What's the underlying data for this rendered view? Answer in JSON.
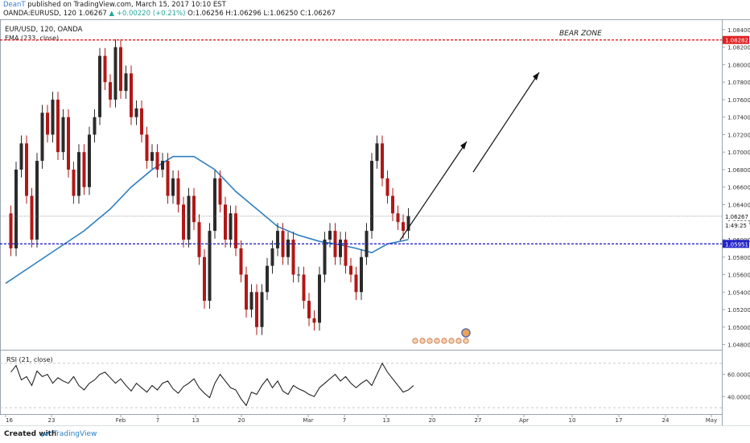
{
  "header": {
    "author": "DeanT",
    "published": " published on TradingView.com, March 15, 2017 10:10 EST",
    "symbol_line_prefix": "OANDA:EURUSD, 120  1.06267",
    "change": "▲ +0.00220 (+0.21%)",
    "ohlc": " O:1.06256 H:1.06296 L:1.06250 C:1.06267"
  },
  "chart_data": [
    {
      "type": "candlestick",
      "title": "EUR/USD, 120, OANDA",
      "legend": [
        "EMA (233, close)"
      ],
      "ylim": [
        1.0475,
        1.085
      ],
      "y_ticks": [
        "1.08400",
        "1.08200",
        "1.08000",
        "1.07800",
        "1.07600",
        "1.07400",
        "1.07200",
        "1.07000",
        "1.06800",
        "1.06600",
        "1.06400",
        "1.06200",
        "1.06000",
        "1.05800",
        "1.05600",
        "1.05400",
        "1.05200",
        "1.05000",
        "1.04800"
      ],
      "price_labels": {
        "resistance": "1.08282",
        "last": "1.06267",
        "countdown": "1:49:25",
        "support": "1.05951"
      },
      "resistance": 1.08282,
      "support": 1.05951,
      "last": 1.06267,
      "annotation": "BEAR ZONE",
      "close_points": [
        [
          0,
          1.063
        ],
        [
          1,
          1.059
        ],
        [
          2,
          1.068
        ],
        [
          3,
          1.071
        ],
        [
          4,
          1.065
        ],
        [
          5,
          1.06
        ],
        [
          6,
          1.069
        ],
        [
          7,
          1.0745
        ],
        [
          8,
          1.072
        ],
        [
          9,
          1.076
        ],
        [
          10,
          1.07
        ],
        [
          11,
          1.074
        ],
        [
          12,
          1.068
        ],
        [
          13,
          1.065
        ],
        [
          14,
          1.07
        ],
        [
          15,
          1.066
        ],
        [
          16,
          1.072
        ],
        [
          17,
          1.074
        ],
        [
          18,
          1.081
        ],
        [
          19,
          1.078
        ],
        [
          20,
          1.076
        ],
        [
          21,
          1.082
        ],
        [
          22,
          1.077
        ],
        [
          23,
          1.079
        ],
        [
          24,
          1.074
        ],
        [
          25,
          1.075
        ],
        [
          26,
          1.072
        ],
        [
          27,
          1.069
        ],
        [
          28,
          1.07
        ],
        [
          29,
          1.068
        ],
        [
          30,
          1.069
        ],
        [
          31,
          1.065
        ],
        [
          32,
          1.067
        ],
        [
          33,
          1.064
        ],
        [
          34,
          1.06
        ],
        [
          35,
          1.065
        ],
        [
          36,
          1.062
        ],
        [
          37,
          1.058
        ],
        [
          38,
          1.053
        ],
        [
          39,
          1.061
        ],
        [
          40,
          1.067
        ],
        [
          41,
          1.064
        ],
        [
          42,
          1.06
        ],
        [
          43,
          1.063
        ],
        [
          44,
          1.059
        ],
        [
          45,
          1.056
        ],
        [
          46,
          1.052
        ],
        [
          47,
          1.054
        ],
        [
          48,
          1.05
        ],
        [
          49,
          1.054
        ],
        [
          50,
          1.057
        ],
        [
          51,
          1.059
        ],
        [
          52,
          1.061
        ],
        [
          53,
          1.058
        ],
        [
          54,
          1.06
        ],
        [
          55,
          1.056
        ],
        [
          56,
          1.056
        ],
        [
          57,
          1.053
        ],
        [
          58,
          1.051
        ],
        [
          59,
          1.0505
        ],
        [
          60,
          1.056
        ],
        [
          61,
          1.06
        ],
        [
          62,
          1.061
        ],
        [
          63,
          1.058
        ],
        [
          64,
          1.06
        ],
        [
          65,
          1.057
        ],
        [
          66,
          1.056
        ],
        [
          67,
          1.054
        ],
        [
          68,
          1.058
        ],
        [
          69,
          1.061
        ],
        [
          70,
          1.069
        ],
        [
          71,
          1.071
        ],
        [
          72,
          1.067
        ],
        [
          73,
          1.065
        ],
        [
          74,
          1.063
        ],
        [
          75,
          1.062
        ],
        [
          76,
          1.061
        ],
        [
          77,
          1.0627
        ]
      ],
      "ema_points": [
        [
          0,
          1.055
        ],
        [
          5,
          1.057
        ],
        [
          10,
          1.059
        ],
        [
          15,
          1.061
        ],
        [
          20,
          1.0635
        ],
        [
          24,
          1.066
        ],
        [
          28,
          1.068
        ],
        [
          32,
          1.0695
        ],
        [
          36,
          1.0695
        ],
        [
          40,
          1.068
        ],
        [
          44,
          1.0655
        ],
        [
          48,
          1.0635
        ],
        [
          52,
          1.0615
        ],
        [
          56,
          1.0605
        ],
        [
          60,
          1.0598
        ],
        [
          64,
          1.0594
        ],
        [
          67,
          1.059
        ],
        [
          70,
          1.0585
        ],
        [
          73,
          1.0595
        ],
        [
          77,
          1.06
        ]
      ]
    },
    {
      "type": "line",
      "title": "RSI (21, close)",
      "ylim": [
        25,
        80
      ],
      "y_ticks": [
        "60.0000",
        "40.0000"
      ],
      "reference_levels": [
        70,
        30
      ],
      "values": [
        62,
        68,
        55,
        58,
        50,
        63,
        58,
        60,
        52,
        57,
        54,
        52,
        58,
        50,
        46,
        52,
        55,
        60,
        62,
        57,
        52,
        56,
        50,
        45,
        52,
        48,
        44,
        50,
        46,
        52,
        54,
        47,
        43,
        49,
        52,
        56,
        48,
        43,
        39,
        52,
        60,
        54,
        48,
        46,
        38,
        32,
        44,
        42,
        50,
        56,
        48,
        54,
        45,
        42,
        50,
        47,
        45,
        42,
        40,
        48,
        52,
        56,
        60,
        54,
        58,
        52,
        48,
        52,
        55,
        50,
        60,
        70,
        62,
        56,
        50,
        44,
        46,
        50
      ]
    }
  ],
  "x_axis": {
    "labels": [
      "16",
      "23",
      "Feb",
      "7",
      "13",
      "20",
      "Mar",
      "7",
      "13",
      "20",
      "27",
      "Apr",
      "10",
      "17",
      "24",
      "May"
    ]
  },
  "footer": {
    "created_with": "Created with",
    "brand": "TradingView"
  },
  "colors": {
    "bull": "#2b2b2b",
    "bear": "#b11717",
    "ema": "#2f7fc1",
    "resistance": "#e02020",
    "support": "#2424c8"
  }
}
